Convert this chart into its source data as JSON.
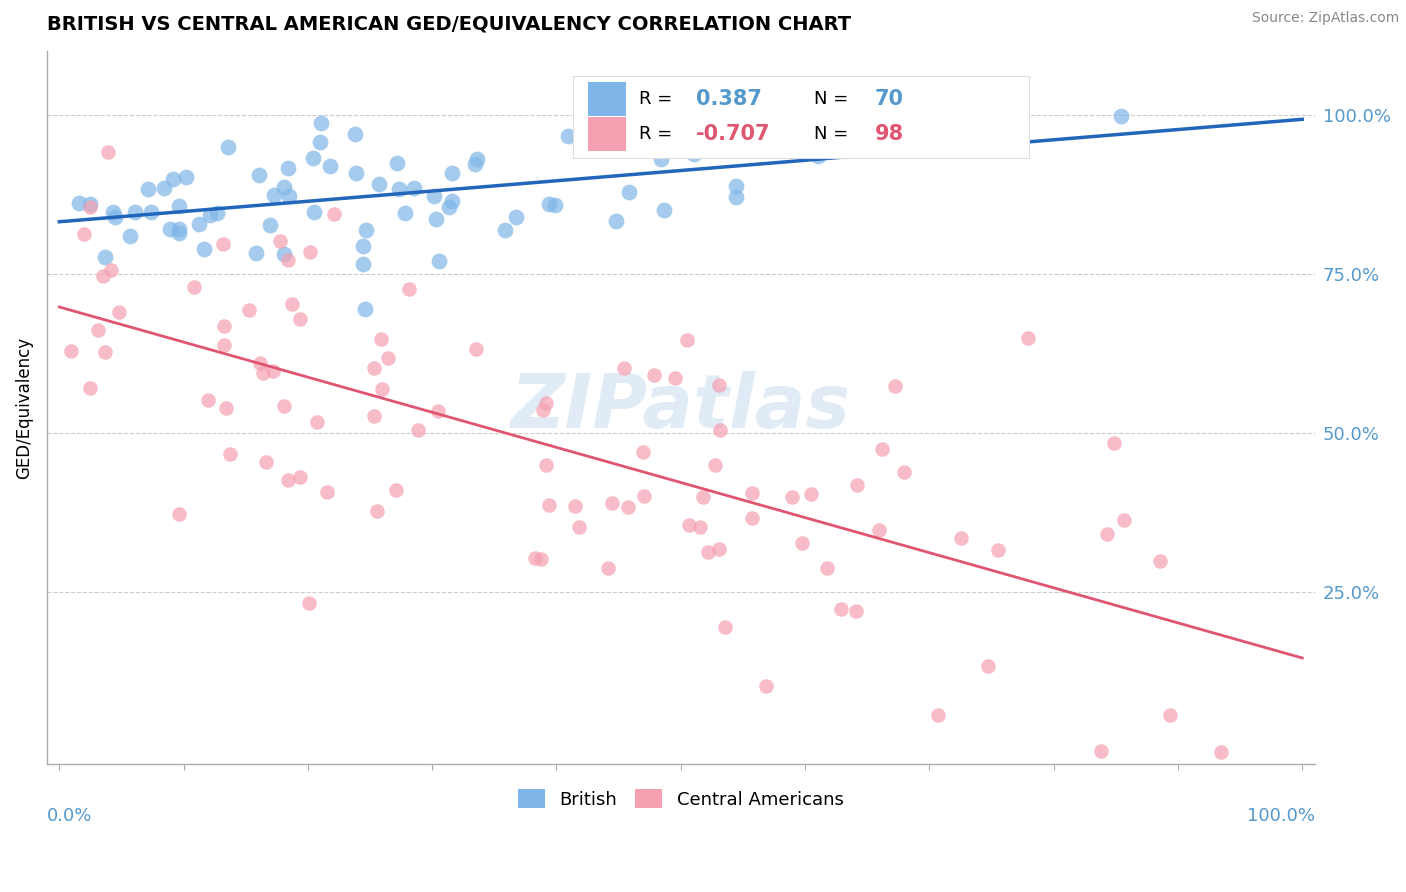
{
  "title": "BRITISH VS CENTRAL AMERICAN GED/EQUIVALENCY CORRELATION CHART",
  "source": "Source: ZipAtlas.com",
  "ylabel": "GED/Equivalency",
  "legend_british": "British",
  "legend_central": "Central Americans",
  "R_british": 0.387,
  "N_british": 70,
  "R_central": -0.707,
  "N_central": 98,
  "blue_color": "#7EB6E8",
  "blue_line_color": "#2266BB",
  "pink_color": "#F4A0B0",
  "pink_line_color": "#E05570",
  "watermark_color": "#C8DCF0",
  "grid_color": "#CCCCCC",
  "axis_color": "#AAAAAA",
  "right_label_color": "#5599CC",
  "title_fontsize": 14,
  "source_fontsize": 10,
  "axis_label_fontsize": 12,
  "tick_label_fontsize": 13,
  "legend_fontsize": 13
}
